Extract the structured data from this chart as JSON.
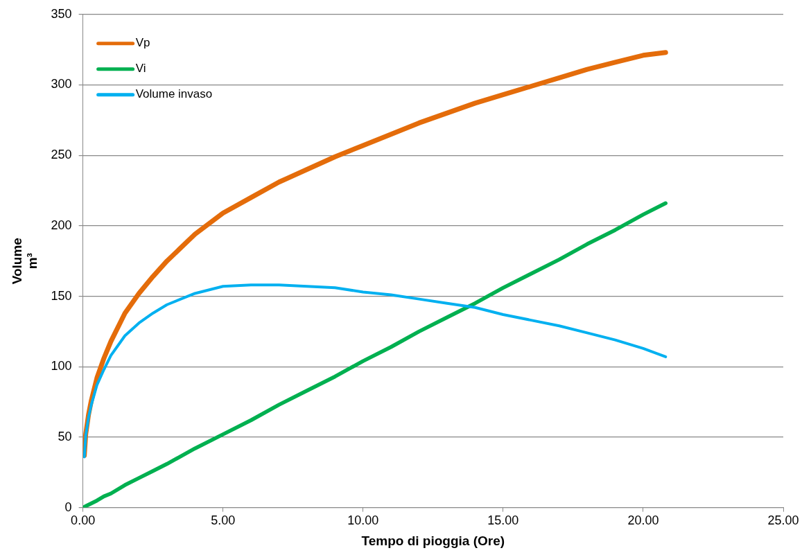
{
  "chart_data": {
    "type": "line",
    "xlabel": "Tempo di pioggia (Ore)",
    "ylabel": "Volume m³",
    "x": [
      0.05,
      0.1,
      0.2,
      0.3,
      0.5,
      0.75,
      1,
      1.5,
      2,
      2.5,
      3,
      4,
      5,
      6,
      7,
      8,
      9,
      10,
      11,
      12,
      13,
      14,
      15,
      16,
      17,
      18,
      19,
      20,
      20.8
    ],
    "series": [
      {
        "name": "Vp",
        "color": "#e46c0a",
        "values": [
          37,
          52,
          66,
          76,
          92,
          106,
          118,
          138,
          152,
          164,
          175,
          194,
          209,
          220,
          231,
          240,
          249,
          257,
          265,
          273,
          280,
          287,
          293,
          299,
          305,
          311,
          316,
          321,
          323
        ]
      },
      {
        "name": "Vi",
        "color": "#00b050",
        "values": [
          0.5,
          1,
          2,
          3,
          5,
          8,
          10,
          16,
          21,
          26,
          31,
          42,
          52,
          62,
          73,
          83,
          93,
          104,
          114,
          125,
          135,
          145,
          156,
          166,
          176,
          187,
          197,
          208,
          216
        ]
      },
      {
        "name": "Volume invaso",
        "color": "#00b0f0",
        "values": [
          36,
          51,
          64,
          73,
          87,
          98,
          108,
          122,
          131,
          138,
          144,
          152,
          157,
          158,
          158,
          157,
          156,
          153,
          151,
          148,
          145,
          142,
          137,
          133,
          129,
          124,
          119,
          113,
          107
        ]
      }
    ],
    "xlim": [
      0,
      25
    ],
    "xticks": [
      {
        "value": 0,
        "label": "0.00"
      },
      {
        "value": 5,
        "label": "5.00"
      },
      {
        "value": 10,
        "label": "10.00"
      },
      {
        "value": 15,
        "label": "15.00"
      },
      {
        "value": 20,
        "label": "20.00"
      },
      {
        "value": 25,
        "label": "25.00"
      }
    ],
    "ylim": [
      0,
      350
    ],
    "yticks": [
      0,
      50,
      100,
      150,
      200,
      250,
      300,
      350
    ],
    "grid": "y",
    "legend": "top left",
    "marker": "none",
    "line_style": "solid"
  }
}
